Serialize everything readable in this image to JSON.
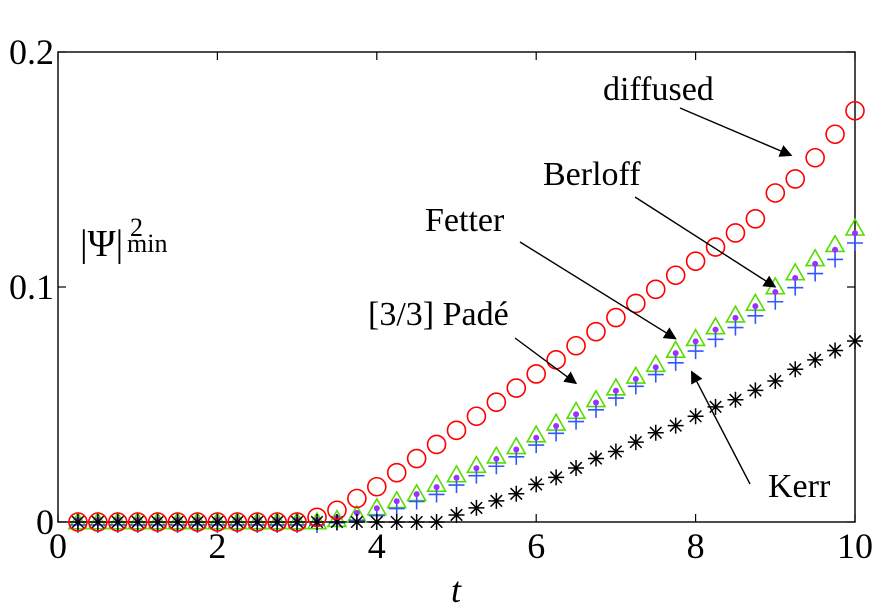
{
  "chart_data": {
    "type": "scatter",
    "title": "",
    "xlabel": "t",
    "ylabel": {
      "main": "|Ψ|",
      "superscript": "2",
      "subscript": "min"
    },
    "xlim": [
      0,
      10
    ],
    "ylim": [
      0,
      0.2
    ],
    "xticks": [
      0,
      2,
      4,
      6,
      8,
      10
    ],
    "xtick_labels": [
      "0",
      "2",
      "4",
      "6",
      "8",
      "10"
    ],
    "yticks": [
      0,
      0.1,
      0.2
    ],
    "ytick_labels": [
      "0",
      "0.1",
      "0.2"
    ],
    "grid": false,
    "x": [
      0.25,
      0.5,
      0.75,
      1.0,
      1.25,
      1.5,
      1.75,
      2.0,
      2.25,
      2.5,
      2.75,
      3.0,
      3.25,
      3.5,
      3.75,
      4.0,
      4.25,
      4.5,
      4.75,
      5.0,
      5.25,
      5.5,
      5.75,
      6.0,
      6.25,
      6.5,
      6.75,
      7.0,
      7.25,
      7.5,
      7.75,
      8.0,
      8.25,
      8.5,
      8.75,
      9.0,
      9.25,
      9.5,
      9.75,
      10.0
    ],
    "series": [
      {
        "name": "diffused",
        "marker": "circle",
        "color": "#ff0000",
        "values": [
          0,
          0,
          0,
          0,
          0,
          0,
          0,
          0,
          0,
          0,
          0,
          0,
          0.002,
          0.005,
          0.01,
          0.015,
          0.021,
          0.027,
          0.033,
          0.039,
          0.045,
          0.051,
          0.057,
          0.063,
          0.069,
          0.075,
          0.081,
          0.087,
          0.093,
          0.099,
          0.105,
          0.111,
          0.117,
          0.123,
          0.129,
          0.14,
          0.146,
          0.155,
          0.165,
          0.175
        ]
      },
      {
        "name": "Berloff",
        "marker": "triangle",
        "color": "#55dd00",
        "values": [
          0,
          0,
          0,
          0,
          0,
          0,
          0,
          0,
          0,
          0,
          0,
          0,
          0,
          0.001,
          0.003,
          0.006,
          0.009,
          0.012,
          0.016,
          0.02,
          0.024,
          0.028,
          0.032,
          0.037,
          0.042,
          0.047,
          0.052,
          0.057,
          0.062,
          0.067,
          0.073,
          0.078,
          0.083,
          0.088,
          0.093,
          0.1,
          0.106,
          0.112,
          0.118,
          0.125
        ]
      },
      {
        "name": "Fetter",
        "marker": "plus",
        "color": "#3355ff",
        "values": [
          0,
          0,
          0,
          0,
          0,
          0,
          0,
          0,
          0,
          0,
          0,
          0,
          0,
          0.001,
          0.002,
          0.004,
          0.007,
          0.01,
          0.013,
          0.017,
          0.021,
          0.025,
          0.029,
          0.034,
          0.039,
          0.044,
          0.049,
          0.054,
          0.059,
          0.064,
          0.069,
          0.074,
          0.079,
          0.084,
          0.089,
          0.095,
          0.101,
          0.107,
          0.113,
          0.12
        ]
      },
      {
        "name": "[3/3] Padé",
        "marker": "dot",
        "color": "#9b30ff",
        "values": [
          0,
          0,
          0,
          0,
          0,
          0,
          0,
          0,
          0,
          0,
          0,
          0,
          0,
          0.001,
          0.003,
          0.005,
          0.008,
          0.011,
          0.014,
          0.018,
          0.022,
          0.026,
          0.03,
          0.035,
          0.04,
          0.045,
          0.05,
          0.055,
          0.06,
          0.065,
          0.071,
          0.076,
          0.081,
          0.086,
          0.091,
          0.097,
          0.103,
          0.109,
          0.115,
          0.122
        ]
      },
      {
        "name": "Kerr",
        "marker": "asterisk",
        "color": "#000000",
        "values": [
          0,
          0,
          0,
          0,
          0,
          0,
          0,
          0,
          0,
          0,
          0,
          0,
          0,
          0,
          0,
          0,
          0,
          0,
          0,
          0.003,
          0.006,
          0.009,
          0.012,
          0.016,
          0.019,
          0.023,
          0.027,
          0.03,
          0.034,
          0.038,
          0.041,
          0.045,
          0.049,
          0.052,
          0.056,
          0.06,
          0.065,
          0.069,
          0.073,
          0.077
        ]
      }
    ],
    "annotations": [
      {
        "id": "diffused",
        "text": "diffused",
        "arrow_to": [
          9.2,
          0.156
        ]
      },
      {
        "id": "berloff",
        "text": "Berloff",
        "arrow_to": [
          9.0,
          0.1
        ]
      },
      {
        "id": "fetter",
        "text": "Fetter",
        "arrow_to": [
          7.75,
          0.078
        ]
      },
      {
        "id": "pade",
        "text": "[3/3] Padé",
        "arrow_to": [
          6.5,
          0.059
        ]
      },
      {
        "id": "kerr",
        "text": "Kerr",
        "arrow_to": [
          7.95,
          0.064
        ]
      }
    ]
  }
}
